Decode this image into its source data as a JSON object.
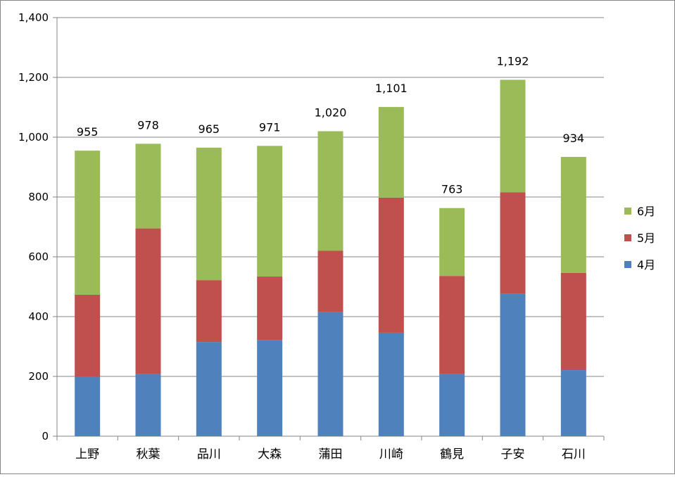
{
  "chart_data": {
    "type": "bar",
    "stacked": true,
    "title": "",
    "xlabel": "",
    "ylabel": "",
    "categories": [
      "上野",
      "秋葉",
      "品川",
      "大森",
      "蒲田",
      "川崎",
      "鶴見",
      "子安",
      "石川"
    ],
    "series": [
      {
        "name": "4月",
        "color": "#4F81BD",
        "values": [
          200,
          208,
          315,
          322,
          415,
          346,
          208,
          476,
          221
        ]
      },
      {
        "name": "5月",
        "color": "#C0504D",
        "values": [
          273,
          487,
          207,
          212,
          205,
          452,
          328,
          340,
          325
        ]
      },
      {
        "name": "6月",
        "color": "#9BBB59",
        "values": [
          482,
          283,
          443,
          437,
          400,
          303,
          227,
          376,
          388
        ]
      }
    ],
    "totals": [
      "955",
      "978",
      "965",
      "971",
      "1,020",
      "1,101",
      "763",
      "1,192",
      "934"
    ],
    "ylim": [
      0,
      1400
    ],
    "yticks": [
      0,
      200,
      400,
      600,
      800,
      1000,
      1200,
      1400
    ],
    "ytick_labels": [
      "0",
      "200",
      "400",
      "600",
      "800",
      "1,000",
      "1,200",
      "1,400"
    ],
    "grid": true,
    "legend_position": "right"
  }
}
